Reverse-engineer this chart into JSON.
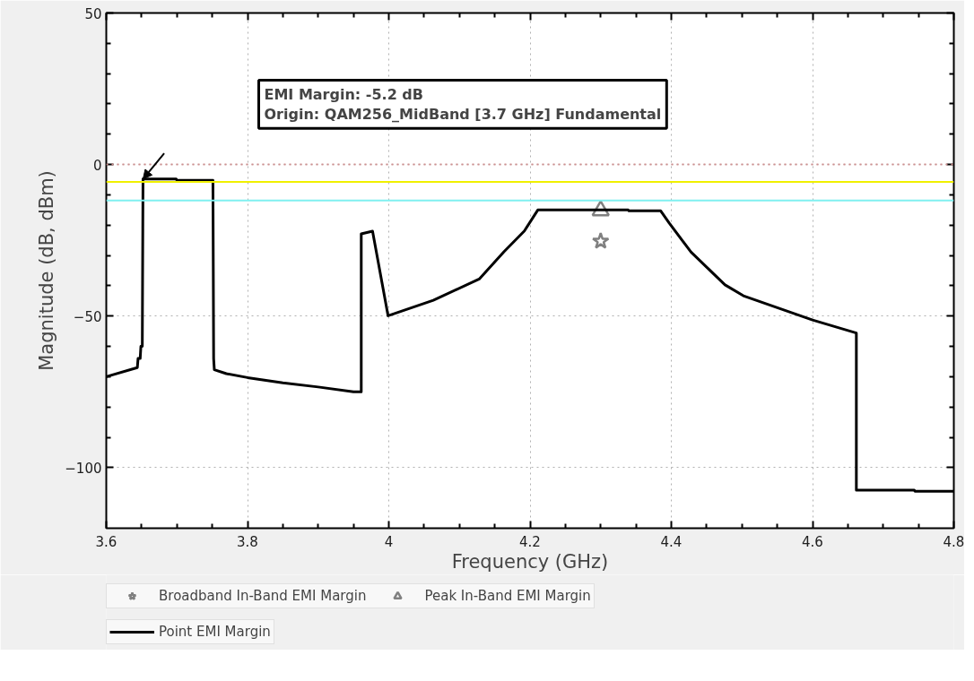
{
  "chart_data": {
    "type": "line",
    "xlabel": "Frequency (GHz)",
    "ylabel": "Magnitude (dB, dBm)",
    "xlim": [
      3.6,
      4.8
    ],
    "xticks": [
      3.6,
      3.8,
      4,
      4.2,
      4.4,
      4.6,
      4.8
    ],
    "ylim": [
      -120,
      50
    ],
    "yticks": [
      -100,
      -50,
      0,
      50
    ],
    "grid": true,
    "legend": "bottom",
    "annotations": [
      "EMI Margin: -5.2 dB\nOrigin: QAM256_MidBand [3.7 GHz] Fundamental"
    ],
    "ref_lines": [
      {
        "axis": "y",
        "value": 0,
        "label": null,
        "color": "#d09090",
        "line_style": "dotted"
      },
      {
        "axis": "y",
        "value": -5.7,
        "label": null,
        "color": "#f0f000",
        "line_style": "solid"
      },
      {
        "axis": "y",
        "value": -11.9,
        "label": null,
        "color": "#80f0f0",
        "line_style": "solid"
      }
    ],
    "series": [
      {
        "name": "Broadband In-Band EMI Margin",
        "type": "scatter",
        "marker": "star",
        "color": "#808080",
        "x": [
          4.3
        ],
        "values": [
          -25.3
        ]
      },
      {
        "name": "Peak In-Band EMI Margin",
        "type": "scatter",
        "marker": "triangle",
        "color": "#808080",
        "x": [
          4.3
        ],
        "values": [
          -15.2
        ]
      },
      {
        "name": "Point EMI Margin",
        "marker": "none",
        "line_style": "solid",
        "color": "#000000",
        "x": [
          3.6,
          3.644,
          3.645,
          3.648,
          3.649,
          3.651,
          3.652,
          3.699,
          3.7,
          3.751,
          3.752,
          3.753,
          3.77,
          3.8,
          3.85,
          3.9,
          3.95,
          3.961,
          3.961,
          3.977,
          3.999,
          4.063,
          4.128,
          4.163,
          4.192,
          4.211,
          4.339,
          4.34,
          4.385,
          4.397,
          4.428,
          4.476,
          4.502,
          4.6,
          4.662,
          4.662,
          4.744,
          4.745,
          4.8
        ],
        "values": [
          -70,
          -67,
          -64,
          -64,
          -60,
          -60,
          -4.8,
          -4.8,
          -5.2,
          -5.2,
          -64,
          -67.7,
          -69,
          -70.3,
          -72,
          -73.4,
          -75,
          -75,
          -22.9,
          -22,
          -49.9,
          -44.8,
          -37.8,
          -28.8,
          -21.9,
          -15,
          -15,
          -15.3,
          -15.3,
          -19.3,
          -28.9,
          -39.7,
          -43.3,
          -51.3,
          -55.6,
          -107.4,
          -107.4,
          -107.8,
          -107.8
        ]
      }
    ]
  }
}
